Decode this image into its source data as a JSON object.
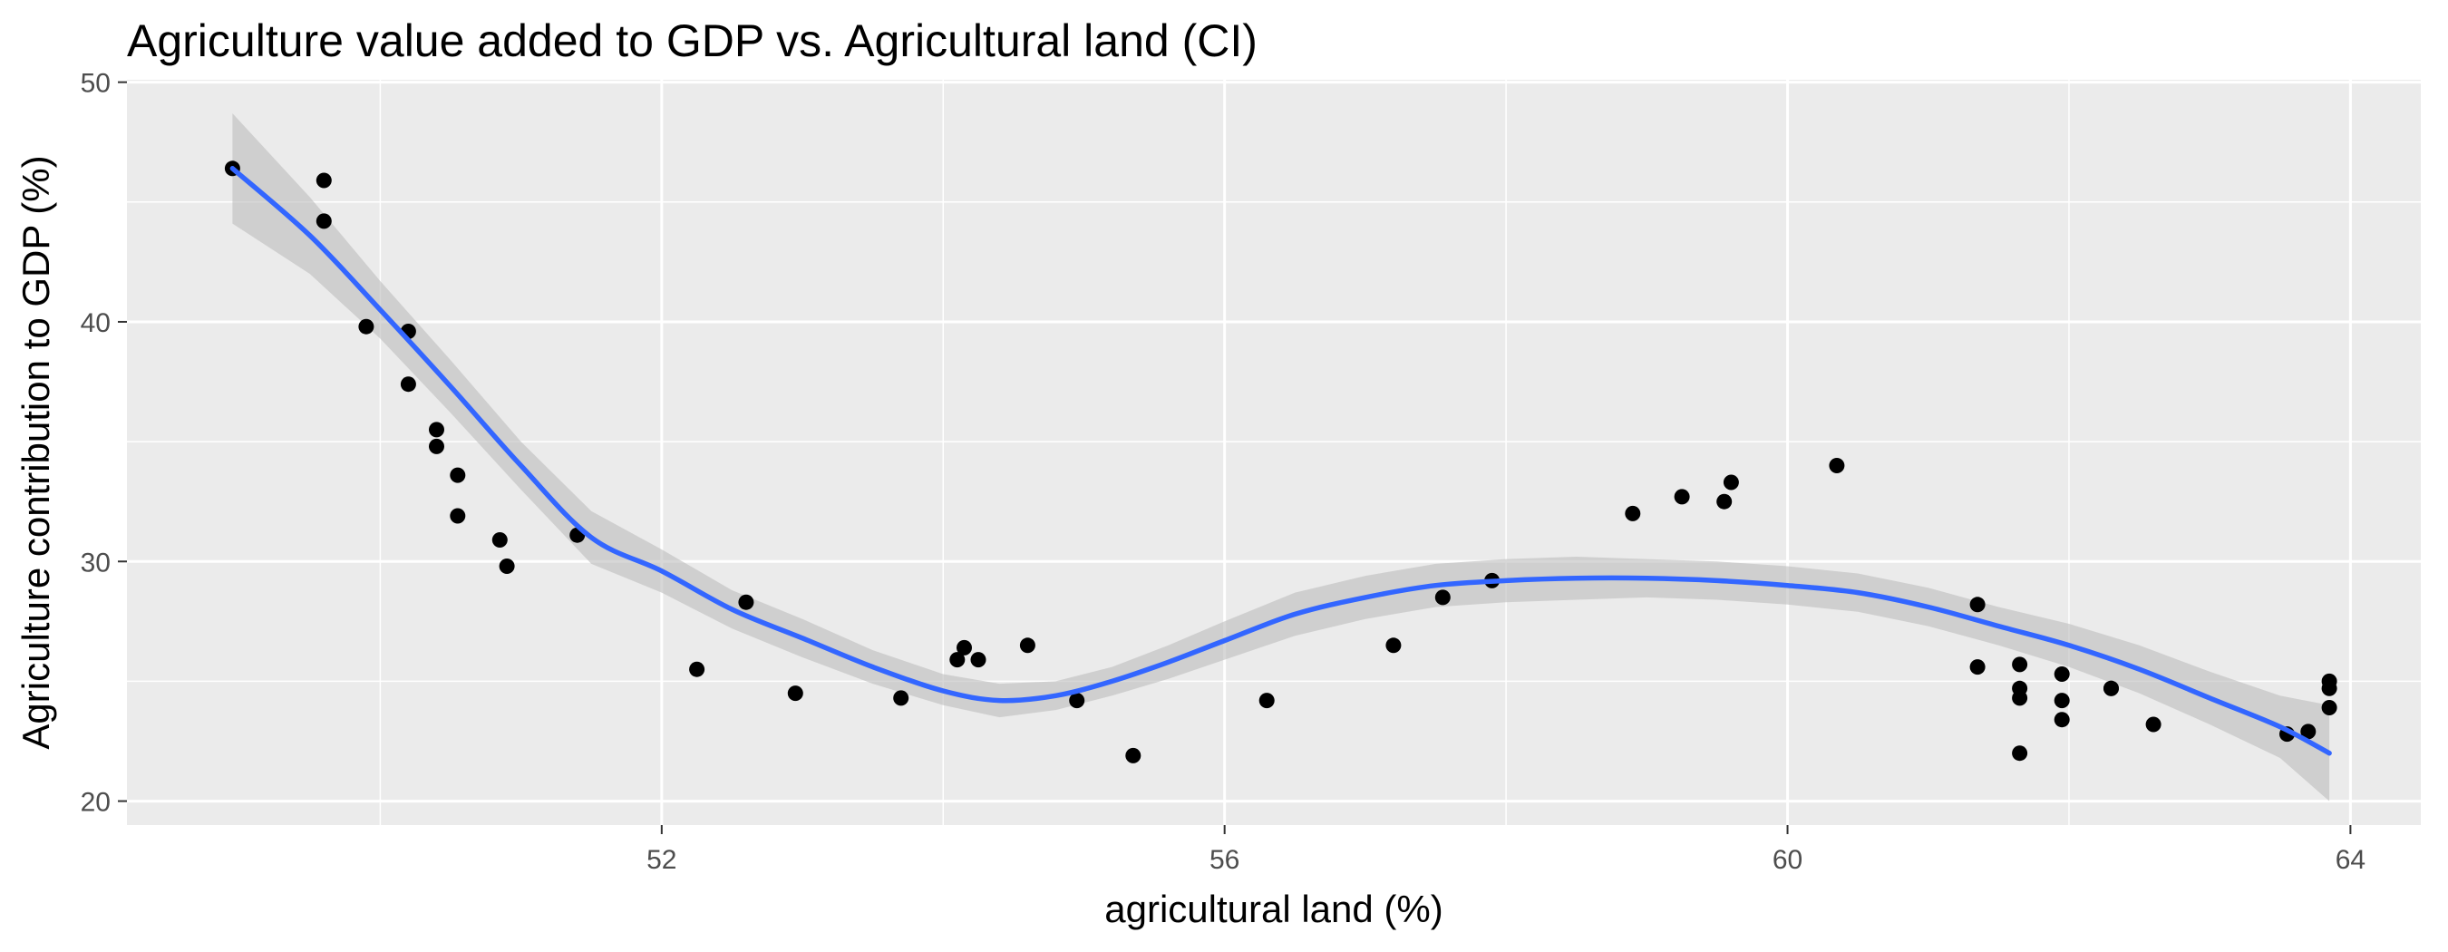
{
  "chart_data": {
    "type": "scatter",
    "title": "Agriculture value added to GDP vs. Agricultural land (CI)",
    "xlabel": "agricultural land (%)",
    "ylabel": "Agriculture contribution to GDP (%)",
    "xlim": [
      48.2,
      64.5
    ],
    "ylim": [
      19,
      50.1
    ],
    "x_ticks": [
      52,
      56,
      60,
      64
    ],
    "y_ticks": [
      20,
      30,
      40,
      50
    ],
    "grid": true,
    "colors": {
      "panel": "#ebebeb",
      "grid": "#ffffff",
      "points": "#000000",
      "fit_line": "#3366ff",
      "ribbon": "#bdbdbd"
    },
    "series": [
      {
        "type": "scatter",
        "points": [
          [
            48.95,
            46.4
          ],
          [
            49.6,
            45.9
          ],
          [
            49.6,
            44.2
          ],
          [
            49.9,
            39.8
          ],
          [
            50.2,
            39.6
          ],
          [
            50.2,
            37.4
          ],
          [
            50.4,
            35.5
          ],
          [
            50.4,
            34.8
          ],
          [
            50.55,
            33.6
          ],
          [
            50.55,
            31.9
          ],
          [
            50.85,
            30.9
          ],
          [
            50.9,
            29.8
          ],
          [
            51.4,
            31.1
          ],
          [
            52.25,
            25.5
          ],
          [
            52.6,
            28.3
          ],
          [
            52.95,
            24.5
          ],
          [
            53.7,
            24.3
          ],
          [
            54.1,
            25.9
          ],
          [
            54.15,
            26.4
          ],
          [
            54.25,
            25.9
          ],
          [
            54.6,
            26.5
          ],
          [
            54.95,
            24.2
          ],
          [
            55.35,
            21.9
          ],
          [
            56.3,
            24.2
          ],
          [
            57.2,
            26.5
          ],
          [
            57.55,
            28.5
          ],
          [
            57.9,
            29.2
          ],
          [
            58.9,
            32.0
          ],
          [
            59.25,
            32.7
          ],
          [
            59.55,
            32.5
          ],
          [
            59.6,
            33.3
          ],
          [
            60.35,
            34.0
          ],
          [
            61.35,
            28.2
          ],
          [
            61.35,
            25.6
          ],
          [
            61.65,
            25.7
          ],
          [
            61.65,
            24.7
          ],
          [
            61.65,
            24.3
          ],
          [
            61.65,
            22.0
          ],
          [
            61.95,
            25.3
          ],
          [
            61.95,
            24.2
          ],
          [
            61.95,
            23.4
          ],
          [
            62.3,
            24.7
          ],
          [
            62.3,
            24.7
          ],
          [
            62.6,
            23.2
          ],
          [
            63.55,
            22.8
          ],
          [
            63.7,
            22.9
          ],
          [
            63.85,
            25.0
          ],
          [
            63.85,
            24.7
          ],
          [
            63.85,
            23.9
          ]
        ]
      },
      {
        "type": "line",
        "fit": "smooth",
        "points": [
          [
            48.95,
            46.4
          ],
          [
            49.5,
            43.6
          ],
          [
            50.0,
            40.5
          ],
          [
            50.5,
            37.3
          ],
          [
            51.0,
            34.0
          ],
          [
            51.5,
            31.0
          ],
          [
            52.0,
            29.6
          ],
          [
            52.5,
            28.0
          ],
          [
            53.0,
            26.8
          ],
          [
            53.5,
            25.6
          ],
          [
            54.0,
            24.6
          ],
          [
            54.4,
            24.2
          ],
          [
            54.8,
            24.4
          ],
          [
            55.2,
            25.0
          ],
          [
            55.6,
            25.8
          ],
          [
            56.0,
            26.7
          ],
          [
            56.5,
            27.8
          ],
          [
            57.0,
            28.5
          ],
          [
            57.5,
            29.0
          ],
          [
            58.0,
            29.2
          ],
          [
            58.5,
            29.3
          ],
          [
            59.0,
            29.3
          ],
          [
            59.5,
            29.2
          ],
          [
            60.0,
            29.0
          ],
          [
            60.5,
            28.7
          ],
          [
            61.0,
            28.1
          ],
          [
            61.5,
            27.3
          ],
          [
            62.0,
            26.5
          ],
          [
            62.5,
            25.5
          ],
          [
            63.0,
            24.3
          ],
          [
            63.5,
            23.1
          ],
          [
            63.85,
            22.0
          ]
        ],
        "ci_lower": [
          44.1,
          42.0,
          39.3,
          36.2,
          33.0,
          29.9,
          28.7,
          27.2,
          26.0,
          24.9,
          24.0,
          23.5,
          23.8,
          24.4,
          25.1,
          25.9,
          26.9,
          27.6,
          28.1,
          28.3,
          28.4,
          28.5,
          28.4,
          28.2,
          27.9,
          27.3,
          26.5,
          25.6,
          24.5,
          23.2,
          21.8,
          20.0
        ],
        "ci_upper": [
          48.7,
          45.2,
          41.7,
          38.4,
          35.0,
          32.1,
          30.5,
          28.8,
          27.6,
          26.3,
          25.3,
          24.9,
          25.0,
          25.6,
          26.5,
          27.5,
          28.7,
          29.4,
          29.9,
          30.1,
          30.2,
          30.1,
          30.0,
          29.8,
          29.5,
          28.9,
          28.1,
          27.4,
          26.5,
          25.4,
          24.4,
          24.0
        ]
      }
    ]
  }
}
